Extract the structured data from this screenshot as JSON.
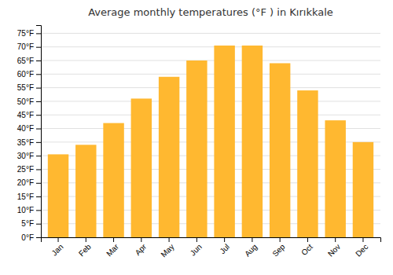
{
  "chart_data": {
    "type": "bar",
    "title": "Average monthly temperatures (°F ) in Kırıkkale",
    "categories": [
      "Jan",
      "Feb",
      "Mar",
      "Apr",
      "May",
      "Jun",
      "Jul",
      "Aug",
      "Sep",
      "Oct",
      "Nov",
      "Dec"
    ],
    "values": [
      30.5,
      34,
      42,
      51,
      59,
      65,
      70.5,
      70.5,
      64,
      54,
      43,
      35
    ],
    "color": "#FFB830",
    "ylim": [
      0,
      78
    ],
    "yticks": [
      {
        "value": 0,
        "label": "0°F"
      },
      {
        "value": 5,
        "label": "5°F"
      },
      {
        "value": 10,
        "label": "10°F"
      },
      {
        "value": 15,
        "label": "15°F"
      },
      {
        "value": 20,
        "label": "20°F"
      },
      {
        "value": 25,
        "label": "25°F"
      },
      {
        "value": 30,
        "label": "30°F"
      },
      {
        "value": 35,
        "label": "35°F"
      },
      {
        "value": 40,
        "label": "40°F"
      },
      {
        "value": 45,
        "label": "45°F"
      },
      {
        "value": 50,
        "label": "50°F"
      },
      {
        "value": 55,
        "label": "55°F"
      },
      {
        "value": 60,
        "label": "60°F"
      },
      {
        "value": 65,
        "label": "65°F"
      },
      {
        "value": 70,
        "label": "70°F"
      },
      {
        "value": 75,
        "label": "75°F"
      }
    ],
    "grid": true
  }
}
